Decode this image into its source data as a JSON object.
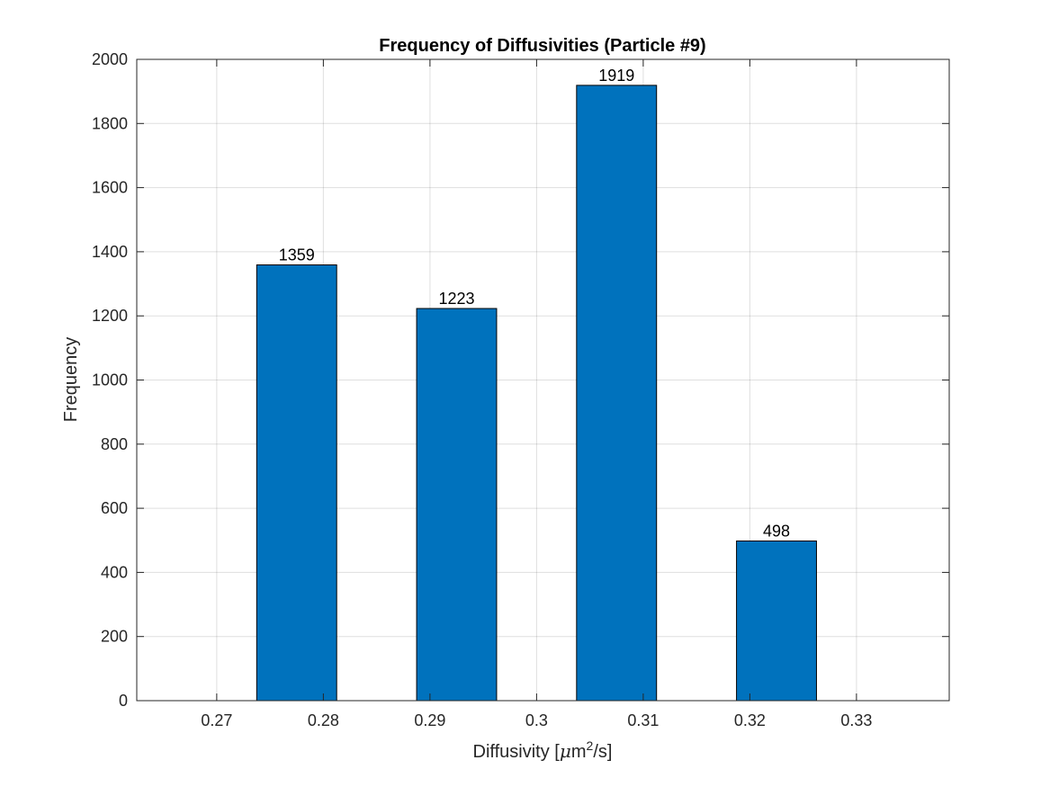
{
  "chart_data": {
    "type": "bar",
    "title": "Frequency of Diffusivities (Particle #9)",
    "xlabel_prefix": "Diffusivity [",
    "xlabel_mu": "μ",
    "xlabel_unit": "m",
    "xlabel_sup": "2",
    "xlabel_suffix": "/s]",
    "ylabel": "Frequency",
    "x": [
      0.2775,
      0.2925,
      0.3075,
      0.3225
    ],
    "values": [
      1359,
      1223,
      1919,
      498
    ],
    "data_labels": [
      "1359",
      "1223",
      "1919",
      "498"
    ],
    "bar_width": 0.0075,
    "xlim": [
      0.2625,
      0.3387
    ],
    "ylim": [
      0,
      2000
    ],
    "xticks": [
      0.27,
      0.28,
      0.29,
      0.3,
      0.31,
      0.32,
      0.33
    ],
    "xtick_labels": [
      "0.27",
      "0.28",
      "0.29",
      "0.3",
      "0.31",
      "0.32",
      "0.33"
    ],
    "yticks": [
      0,
      200,
      400,
      600,
      800,
      1000,
      1200,
      1400,
      1600,
      1800,
      2000
    ],
    "ytick_labels": [
      "0",
      "200",
      "400",
      "600",
      "800",
      "1000",
      "1200",
      "1400",
      "1600",
      "1800",
      "2000"
    ],
    "grid": true,
    "bar_color": "#0072BD",
    "bar_edge_color": "#000000"
  }
}
